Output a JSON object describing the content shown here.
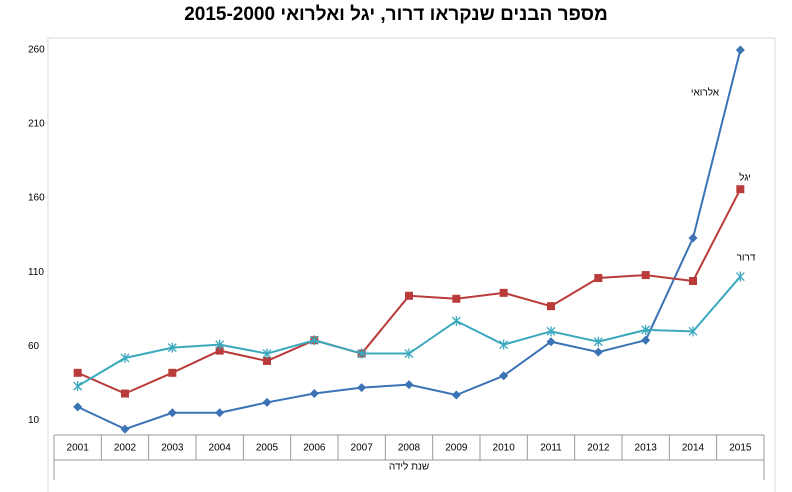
{
  "chart_data": {
    "type": "line",
    "title": "מספר הבנים שנקראו דרור, יגל ואלרואי 2015-2000",
    "x_label": "שנת לידה",
    "categories": [
      "2001",
      "2002",
      "2003",
      "2004",
      "2005",
      "2006",
      "2007",
      "2008",
      "2009",
      "2010",
      "2011",
      "2012",
      "2013",
      "2014",
      "2015"
    ],
    "ylim": [
      0,
      260
    ],
    "yticks": [
      10,
      60,
      110,
      160,
      210,
      260
    ],
    "grid": false,
    "series": [
      {
        "name": "אלרואי",
        "color": "#3b73b4",
        "marker": "diamond",
        "values": [
          19,
          4,
          15,
          15,
          22,
          28,
          32,
          34,
          27,
          40,
          63,
          56,
          64,
          133,
          260
        ]
      },
      {
        "name": "יגל",
        "color": "#b93c3a",
        "marker": "square",
        "values": [
          42,
          28,
          42,
          57,
          50,
          64,
          55,
          94,
          92,
          96,
          87,
          106,
          108,
          104,
          166
        ]
      },
      {
        "name": "דרור",
        "color": "#3aa9bd",
        "marker": "asterisk",
        "values": [
          33,
          52,
          59,
          61,
          55,
          64,
          55,
          55,
          77,
          61,
          70,
          63,
          71,
          70,
          107
        ]
      }
    ]
  }
}
